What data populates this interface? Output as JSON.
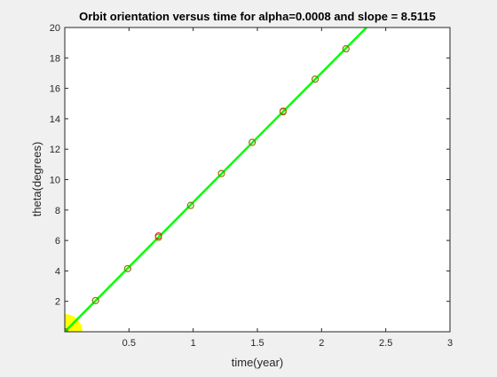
{
  "chart_data": {
    "type": "line",
    "title": "Orbit orientation versus time for alpha=0.0008 and slope = 8.5115",
    "xlabel": "time(year)",
    "ylabel": "theta(degrees)",
    "xlim": [
      0,
      3
    ],
    "ylim": [
      0,
      20
    ],
    "xticks": [
      0.5,
      1,
      1.5,
      2,
      2.5,
      3
    ],
    "xtick_labels": [
      "0.5",
      "1",
      "1.5",
      "2",
      "2.5",
      "3"
    ],
    "yticks": [
      2,
      4,
      6,
      8,
      10,
      12,
      14,
      16,
      18,
      20
    ],
    "ytick_labels": [
      "2",
      "4",
      "6",
      "8",
      "10",
      "12",
      "14",
      "16",
      "18",
      "20"
    ],
    "grid": false,
    "series": [
      {
        "style": "line",
        "color": "#00ff00",
        "x": [
          0,
          2.35
        ],
        "y": [
          0,
          20
        ]
      },
      {
        "style": "markers",
        "marker": "circle",
        "color": "#ff0000",
        "x": [
          0,
          0.24,
          0.49,
          0.73,
          0.98,
          1.22,
          1.46,
          1.7,
          1.95,
          2.19
        ],
        "y": [
          0,
          2.05,
          4.15,
          6.3,
          8.3,
          10.4,
          12.45,
          14.5,
          16.6,
          18.6
        ]
      },
      {
        "style": "markers",
        "marker": "circle",
        "color": "#808000",
        "x": [
          0,
          0.24,
          0.49,
          0.73,
          0.98,
          1.22,
          1.46,
          1.7,
          1.95,
          2.19
        ],
        "y": [
          0,
          2.05,
          4.15,
          6.2,
          8.3,
          10.4,
          12.45,
          14.45,
          16.6,
          18.6
        ]
      }
    ],
    "highlight_marker": {
      "x": 0,
      "y": 0,
      "color": "#ffff00"
    }
  }
}
